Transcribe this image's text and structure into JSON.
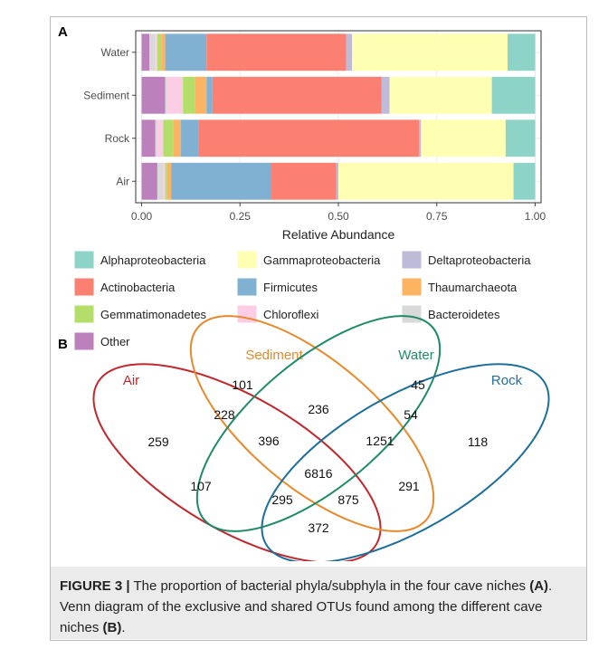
{
  "chart_data": {
    "type": "bar",
    "orientation": "horizontal",
    "stacked": true,
    "panel_label": "A",
    "categories": [
      "Water",
      "Sediment",
      "Rock",
      "Air"
    ],
    "series": [
      {
        "name": "Alphaproteobacteria",
        "color": "#8dd3c7",
        "values": [
          0.07,
          0.11,
          0.075,
          0.055
        ]
      },
      {
        "name": "Gammaproteobacteria",
        "color": "#ffffb3",
        "values": [
          0.395,
          0.26,
          0.215,
          0.445
        ]
      },
      {
        "name": "Deltaproteobacteria",
        "color": "#bebada",
        "values": [
          0.015,
          0.02,
          0.005,
          0.005
        ]
      },
      {
        "name": "Actinobacteria",
        "color": "#fb8072",
        "values": [
          0.355,
          0.43,
          0.56,
          0.165
        ]
      },
      {
        "name": "Firmicutes",
        "color": "#80b1d3",
        "values": [
          0.105,
          0.015,
          0.045,
          0.255
        ]
      },
      {
        "name": "Thaumarchaeota",
        "color": "#fdb462",
        "values": [
          0.01,
          0.03,
          0.02,
          0.01
        ]
      },
      {
        "name": "Gemmatimonadetes",
        "color": "#b3de69",
        "values": [
          0.01,
          0.03,
          0.025,
          0.005
        ]
      },
      {
        "name": "Chloroflexi",
        "color": "#fccde5",
        "values": [
          0.005,
          0.04,
          0.015,
          0.005
        ]
      },
      {
        "name": "Bacteroidetes",
        "color": "#d9d9d9",
        "values": [
          0.015,
          0.005,
          0.005,
          0.015
        ]
      },
      {
        "name": "Other",
        "color": "#bc80bd",
        "values": [
          0.02,
          0.06,
          0.035,
          0.04
        ]
      }
    ],
    "xlabel": "Relative Abundance",
    "xlim": [
      -0.015,
      1.015
    ],
    "xticks": [
      {
        "value": 0,
        "label": "0.00"
      },
      {
        "value": 0.25,
        "label": "0.25"
      },
      {
        "value": 0.5,
        "label": "0.50"
      },
      {
        "value": 0.75,
        "label": "0.75"
      },
      {
        "value": 1,
        "label": "1.00"
      }
    ],
    "grid": true
  },
  "venn": {
    "panel_label": "B",
    "sets": [
      {
        "name": "Air",
        "color": "#c0282d"
      },
      {
        "name": "Sediment",
        "color": "#e8892b"
      },
      {
        "name": "Water",
        "color": "#1f8a68"
      },
      {
        "name": "Rock",
        "color": "#1d6f9a"
      }
    ],
    "regions": [
      "101",
      "45",
      "228",
      "236",
      "54",
      "259",
      "396",
      "1251",
      "118",
      "6816",
      "107",
      "291",
      "295",
      "875",
      "372"
    ]
  },
  "caption": {
    "label": "FIGURE 3 |",
    "text1": " The proportion of bacterial phyla/subphyla in the four cave niches ",
    "ref1": "(A)",
    "text2": ". Venn diagram of the exclusive and shared OTUs found among the different cave niches ",
    "ref2": "(B)",
    "text3": "."
  }
}
